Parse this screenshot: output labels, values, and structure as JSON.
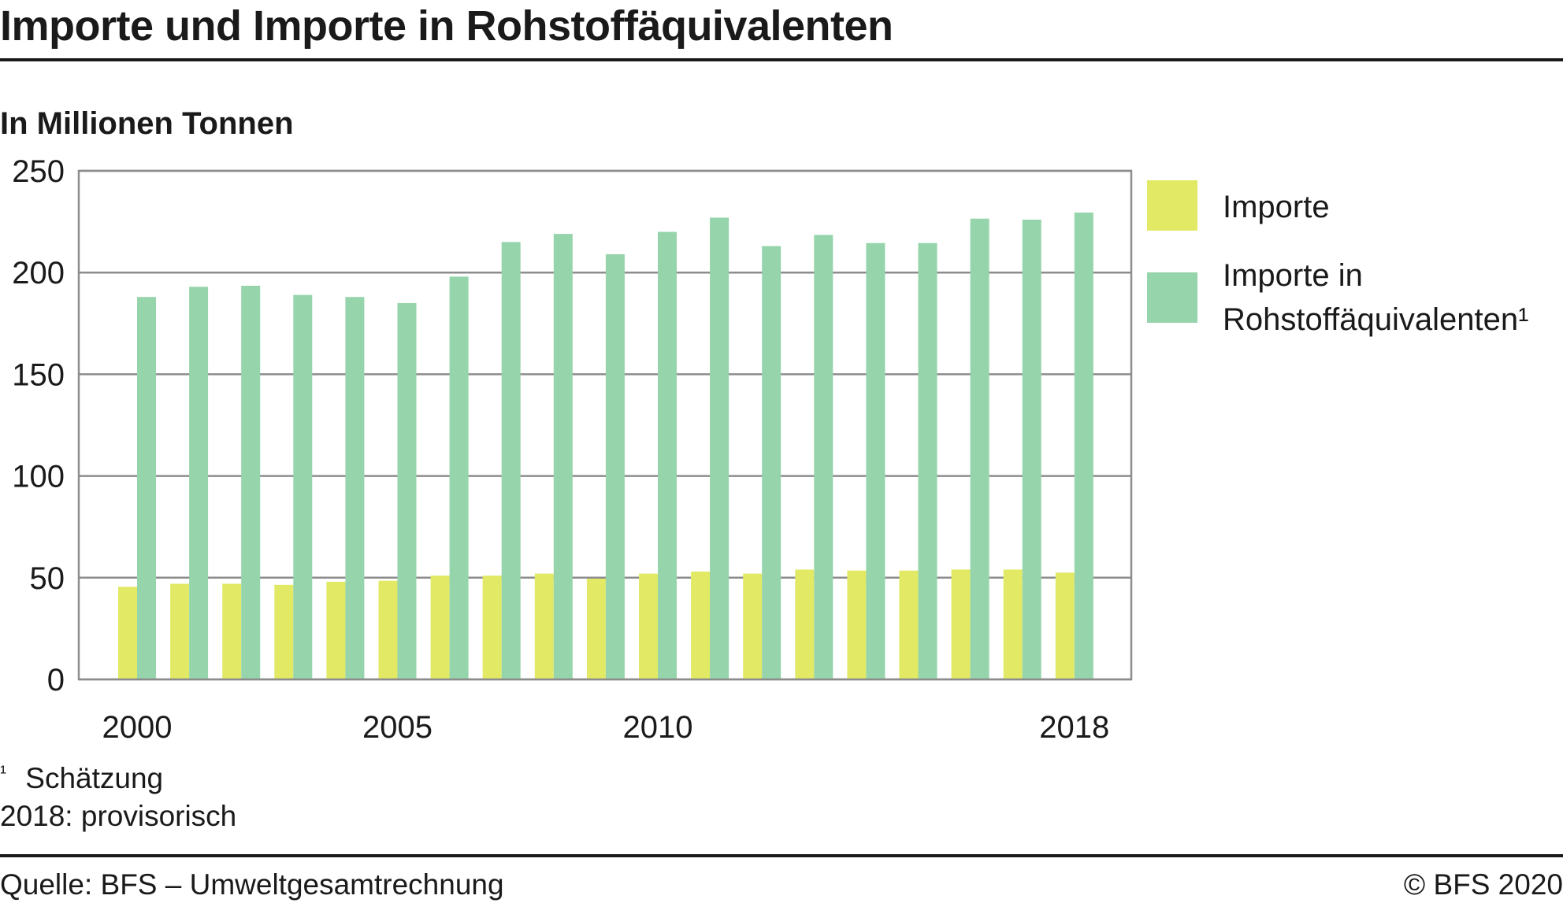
{
  "title": "Importe und Importe in Rohstoffäquivalenten",
  "unit_label": "In Millionen Tonnen",
  "footnote_mark": "¹",
  "footnote_text": "Schätzung",
  "provisional_note": "2018: provisorisch",
  "source": "Quelle: BFS – Umweltgesamtrechnung",
  "copyright": "© BFS 2020",
  "colors": {
    "importe": "#e1e965",
    "rohstoff": "#96d4ab",
    "grid": "#8c8c8c",
    "frame": "#8c8c8c",
    "text": "#1a1a1a"
  },
  "chart_data": {
    "type": "bar",
    "title": "Importe und Importe in Rohstoffäquivalenten",
    "ylabel": "In Millionen Tonnen",
    "xlabel": "",
    "ylim": [
      0,
      250
    ],
    "yticks": [
      "0",
      "50",
      "100",
      "150",
      "200",
      "250"
    ],
    "xtick_labels": [
      {
        "year": 2000,
        "label": "2000"
      },
      {
        "year": 2005,
        "label": "2005"
      },
      {
        "year": 2010,
        "label": "2010"
      },
      {
        "year": 2018,
        "label": "2018"
      }
    ],
    "grid": true,
    "legend_position": "right",
    "categories": [
      2000,
      2001,
      2002,
      2003,
      2004,
      2005,
      2006,
      2007,
      2008,
      2009,
      2010,
      2011,
      2012,
      2013,
      2014,
      2015,
      2016,
      2017,
      2018
    ],
    "series": [
      {
        "name": "Importe",
        "color": "#e1e965",
        "values": [
          45.5,
          47,
          47,
          46.5,
          48,
          48.5,
          51,
          51,
          52,
          49.5,
          52,
          53,
          52,
          54,
          53.5,
          53.5,
          54,
          54,
          52.5
        ]
      },
      {
        "name": "Importe in Rohstoffäquivalenten¹",
        "legend_lines": [
          "Importe in",
          "Rohstoffäquivalenten¹"
        ],
        "color": "#96d4ab",
        "values": [
          188,
          193,
          193.5,
          189,
          188,
          185,
          198,
          215,
          219,
          209,
          220,
          227,
          213,
          218.5,
          214.5,
          214.5,
          226.5,
          226,
          229.5
        ]
      }
    ]
  }
}
